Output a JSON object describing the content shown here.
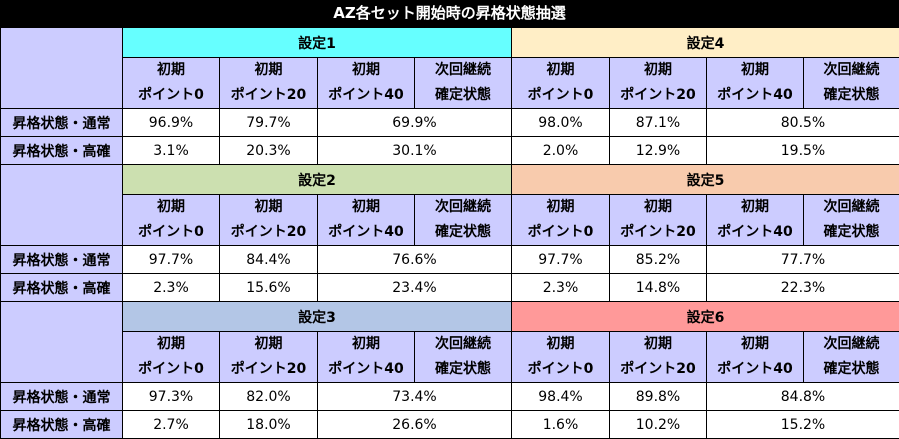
{
  "title": "AZ各セット開始時の昇格状態抽選",
  "columns": [
    {
      "line1": "初期",
      "line2": "ポイント0"
    },
    {
      "line1": "初期",
      "line2": "ポイント20"
    },
    {
      "line1": "初期",
      "line2": "ポイント40"
    },
    {
      "line1": "次回継続",
      "line2": "確定状態"
    }
  ],
  "row_labels": {
    "normal": "昇格状態・通常",
    "high": "昇格状態・高確"
  },
  "colors": {
    "setting1": "#66ffff",
    "setting2": "#cce0b0",
    "setting3": "#b3c6e6",
    "setting4": "#ffeec6",
    "setting5": "#f8cbad",
    "setting6": "#ff9999",
    "label_bg": "#ccccff"
  },
  "blocks": [
    {
      "left": {
        "setting": "設定1",
        "normal": [
          "96.9%",
          "79.7%",
          "69.9%"
        ],
        "high": [
          "3.1%",
          "20.3%",
          "30.1%"
        ]
      },
      "right": {
        "setting": "設定4",
        "normal": [
          "98.0%",
          "87.1%",
          "80.5%"
        ],
        "high": [
          "2.0%",
          "12.9%",
          "19.5%"
        ]
      }
    },
    {
      "left": {
        "setting": "設定2",
        "normal": [
          "97.7%",
          "84.4%",
          "76.6%"
        ],
        "high": [
          "2.3%",
          "15.6%",
          "23.4%"
        ]
      },
      "right": {
        "setting": "設定5",
        "normal": [
          "97.7%",
          "85.2%",
          "77.7%"
        ],
        "high": [
          "2.3%",
          "14.8%",
          "22.3%"
        ]
      }
    },
    {
      "left": {
        "setting": "設定3",
        "normal": [
          "97.3%",
          "82.0%",
          "73.4%"
        ],
        "high": [
          "2.7%",
          "18.0%",
          "26.6%"
        ]
      },
      "right": {
        "setting": "設定6",
        "normal": [
          "98.4%",
          "89.8%",
          "84.8%"
        ],
        "high": [
          "1.6%",
          "10.2%",
          "15.2%"
        ]
      }
    }
  ]
}
